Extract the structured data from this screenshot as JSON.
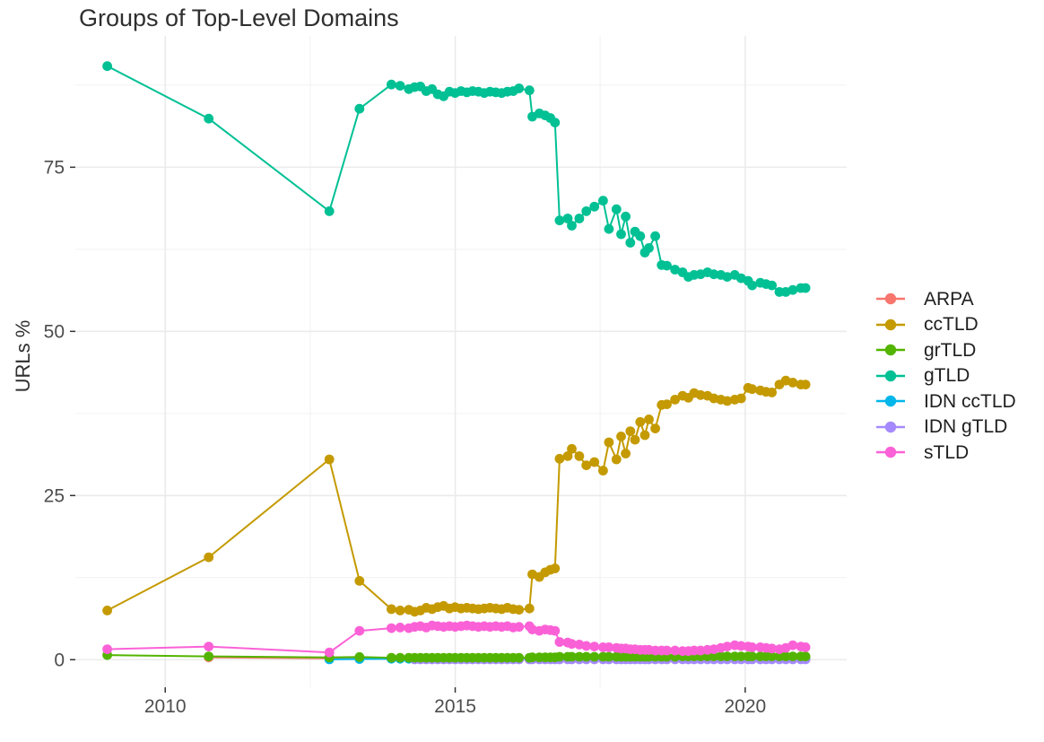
{
  "title": "Groups of Top-Level Domains",
  "ylabel": "URLs %",
  "legend": {
    "entries": [
      "ARPA",
      "ccTLD",
      "grTLD",
      "gTLD",
      "IDN ccTLD",
      "IDN gTLD",
      "sTLD"
    ]
  },
  "chart_data": {
    "type": "line",
    "title": "Groups of Top-Level Domains",
    "xlabel": "",
    "ylabel": "URLs %",
    "grid": true,
    "legend_position": "right",
    "xlim": [
      2008.45,
      2021.75
    ],
    "ylim": [
      -4.2,
      95.0
    ],
    "xticks_major": [
      2010,
      2015,
      2020
    ],
    "xticks_minor": [
      2012.5,
      2017.5
    ],
    "yticks_major": [
      0,
      25,
      50,
      75
    ],
    "yticks_minor": [
      12.5,
      37.5,
      62.5,
      87.5
    ],
    "x": [
      2009.0,
      2010.75,
      2012.83,
      2013.35,
      2013.9,
      2014.05,
      2014.2,
      2014.3,
      2014.4,
      2014.5,
      2014.6,
      2014.7,
      2014.8,
      2014.9,
      2015.0,
      2015.1,
      2015.2,
      2015.3,
      2015.4,
      2015.5,
      2015.6,
      2015.7,
      2015.8,
      2015.9,
      2016.0,
      2016.1,
      2016.28,
      2016.33,
      2016.45,
      2016.55,
      2016.64,
      2016.72,
      2016.8,
      2016.94,
      2017.01,
      2017.14,
      2017.26,
      2017.4,
      2017.55,
      2017.65,
      2017.78,
      2017.86,
      2017.94,
      2018.02,
      2018.1,
      2018.19,
      2018.27,
      2018.34,
      2018.45,
      2018.56,
      2018.65,
      2018.79,
      2018.92,
      2019.02,
      2019.12,
      2019.23,
      2019.35,
      2019.46,
      2019.58,
      2019.69,
      2019.82,
      2019.93,
      2020.05,
      2020.12,
      2020.26,
      2020.36,
      2020.46,
      2020.59,
      2020.7,
      2020.82,
      2020.96,
      2021.04
    ],
    "series": [
      {
        "name": "ARPA",
        "color": "#F8766D",
        "values": [
          null,
          0.35,
          0.2,
          0.3,
          0.25,
          0.25,
          0.25,
          0.25,
          0.25,
          0.25,
          0.25,
          0.25,
          0.25,
          0.25,
          0.25,
          0.25,
          0.25,
          0.25,
          0.25,
          0.25,
          0.25,
          0.25,
          0.25,
          0.25,
          0.25,
          0.25,
          0.25,
          0.25,
          0.25,
          0.25,
          0.25,
          0.25,
          0.3,
          0.3,
          0.3,
          0.3,
          0.3,
          0.3,
          0.3,
          0.3,
          0.3,
          0.3,
          0.3,
          0.3,
          0.3,
          0.3,
          0.3,
          0.3,
          0.3,
          0.3,
          0.3,
          0.3,
          0.3,
          0.3,
          0.3,
          0.3,
          0.3,
          0.3,
          0.3,
          0.3,
          0.3,
          0.3,
          0.3,
          0.3,
          0.3,
          0.3,
          0.3,
          0.3,
          0.3,
          0.3,
          0.3,
          0.3
        ]
      },
      {
        "name": "ccTLD",
        "color": "#C49A00",
        "values": [
          7.5,
          15.6,
          30.5,
          12.0,
          7.7,
          7.5,
          7.6,
          7.3,
          7.5,
          7.9,
          7.7,
          8.0,
          8.2,
          7.8,
          8.0,
          7.8,
          7.9,
          7.8,
          7.7,
          7.8,
          7.9,
          7.8,
          7.7,
          7.9,
          7.7,
          7.6,
          7.8,
          13.0,
          12.6,
          13.3,
          13.7,
          13.9,
          30.6,
          31.0,
          32.1,
          31.0,
          29.6,
          30.1,
          28.8,
          33.1,
          30.5,
          34.0,
          31.4,
          34.8,
          33.5,
          36.2,
          34.2,
          36.6,
          35.2,
          38.8,
          38.9,
          39.6,
          40.2,
          39.9,
          40.6,
          40.3,
          40.2,
          39.8,
          39.6,
          39.4,
          39.6,
          39.8,
          41.4,
          41.2,
          41.0,
          40.8,
          40.7,
          41.9,
          42.5,
          42.2,
          41.9,
          41.9
        ]
      },
      {
        "name": "grTLD",
        "color": "#53B400",
        "values": [
          0.7,
          0.5,
          0.35,
          0.4,
          0.3,
          0.3,
          0.3,
          0.3,
          0.3,
          0.3,
          0.3,
          0.3,
          0.3,
          0.3,
          0.3,
          0.3,
          0.3,
          0.3,
          0.3,
          0.3,
          0.3,
          0.3,
          0.3,
          0.3,
          0.3,
          0.3,
          0.3,
          0.35,
          0.35,
          0.35,
          0.35,
          0.35,
          0.45,
          0.45,
          0.45,
          0.45,
          0.45,
          0.45,
          0.45,
          0.45,
          0.45,
          0.45,
          0.45,
          0.45,
          0.45,
          0.45,
          0.45,
          0.45,
          0.45,
          0.45,
          0.45,
          0.45,
          0.5,
          0.5,
          0.5,
          0.5,
          0.5,
          0.5,
          0.5,
          0.5,
          0.5,
          0.5,
          0.5,
          0.5,
          0.5,
          0.5,
          0.5,
          0.5,
          0.5,
          0.5,
          0.5,
          0.5
        ]
      },
      {
        "name": "gTLD",
        "color": "#00C094",
        "values": [
          90.4,
          82.4,
          68.3,
          83.9,
          87.6,
          87.4,
          86.9,
          87.2,
          87.3,
          86.6,
          86.9,
          86.1,
          85.8,
          86.5,
          86.3,
          86.6,
          86.4,
          86.6,
          86.5,
          86.3,
          86.5,
          86.4,
          86.3,
          86.5,
          86.6,
          87.0,
          86.7,
          82.7,
          83.2,
          82.9,
          82.5,
          81.8,
          66.9,
          67.2,
          66.1,
          67.2,
          68.3,
          69.0,
          69.9,
          65.6,
          68.6,
          64.8,
          67.5,
          63.5,
          65.2,
          64.5,
          62.0,
          62.7,
          64.5,
          60.1,
          60.0,
          59.4,
          59.0,
          58.3,
          58.6,
          58.7,
          59.0,
          58.7,
          58.6,
          58.3,
          58.6,
          58.1,
          57.7,
          57.0,
          57.4,
          57.2,
          57.0,
          56.0,
          56.0,
          56.3,
          56.6,
          56.6
        ]
      },
      {
        "name": "IDN ccTLD",
        "color": "#00B6EB",
        "values": [
          null,
          null,
          0.05,
          0.1,
          0.15,
          0.15,
          0.15,
          0.15,
          0.15,
          0.15,
          0.15,
          0.15,
          0.15,
          0.15,
          0.15,
          0.15,
          0.15,
          0.15,
          0.15,
          0.15,
          0.15,
          0.15,
          0.15,
          0.15,
          0.15,
          0.15,
          0.15,
          0.15,
          0.15,
          0.15,
          0.15,
          0.15,
          0.15,
          0.15,
          0.15,
          0.15,
          0.15,
          0.15,
          0.15,
          0.15,
          0.15,
          0.15,
          0.15,
          0.15,
          0.15,
          0.15,
          0.15,
          0.15,
          0.15,
          0.15,
          0.15,
          0.15,
          0.15,
          0.15,
          0.15,
          0.15,
          0.15,
          0.15,
          0.15,
          0.15,
          0.15,
          0.15,
          0.15,
          0.15,
          0.15,
          0.15,
          0.15,
          0.15,
          0.15,
          0.15,
          0.15,
          0.15
        ]
      },
      {
        "name": "IDN gTLD",
        "color": "#A58AFF",
        "values": [
          null,
          null,
          null,
          null,
          null,
          null,
          null,
          0.05,
          0.05,
          0.05,
          0.05,
          0.05,
          0.05,
          0.05,
          0.05,
          0.05,
          0.05,
          0.05,
          0.05,
          0.05,
          0.05,
          0.05,
          0.05,
          0.05,
          0.05,
          0.05,
          0.05,
          0.05,
          0.05,
          0.05,
          0.05,
          0.05,
          0.05,
          0.05,
          0.05,
          0.05,
          0.05,
          0.05,
          0.05,
          0.05,
          0.05,
          0.05,
          0.05,
          0.05,
          0.05,
          0.05,
          0.05,
          0.05,
          0.05,
          0.05,
          0.05,
          0.05,
          0.05,
          0.05,
          0.05,
          0.05,
          0.05,
          0.05,
          0.05,
          0.05,
          0.05,
          0.05,
          0.05,
          0.05,
          0.05,
          0.05,
          0.05,
          0.05,
          0.05,
          0.05,
          0.05,
          0.05
        ]
      },
      {
        "name": "sTLD",
        "color": "#FB61D7",
        "values": [
          1.6,
          2.0,
          1.1,
          4.4,
          4.8,
          4.9,
          4.8,
          5.0,
          5.1,
          4.9,
          5.2,
          5.1,
          5.0,
          5.1,
          5.0,
          5.1,
          5.2,
          5.1,
          5.0,
          5.1,
          5.0,
          5.1,
          5.0,
          5.1,
          4.9,
          5.0,
          5.1,
          4.6,
          4.4,
          4.6,
          4.5,
          4.4,
          2.7,
          2.6,
          2.4,
          2.3,
          2.1,
          2.0,
          1.9,
          1.9,
          1.8,
          1.7,
          1.7,
          1.6,
          1.6,
          1.5,
          1.5,
          1.5,
          1.4,
          1.4,
          1.4,
          1.4,
          1.3,
          1.3,
          1.4,
          1.4,
          1.5,
          1.6,
          1.8,
          2.0,
          2.2,
          2.1,
          2.0,
          1.9,
          1.9,
          1.8,
          1.7,
          1.6,
          1.8,
          2.2,
          2.0,
          1.9
        ]
      }
    ],
    "draw_order": [
      "ARPA",
      "IDN ccTLD",
      "IDN gTLD",
      "grTLD",
      "ccTLD",
      "gTLD",
      "sTLD"
    ],
    "style": {
      "grid_major_color": "#EBEBEB",
      "grid_minor_color": "#F1F1F1",
      "tick_color": "#333333",
      "tick_label_color": "#4d4d4d",
      "point_radius": 5.4,
      "line_width": 2
    }
  }
}
